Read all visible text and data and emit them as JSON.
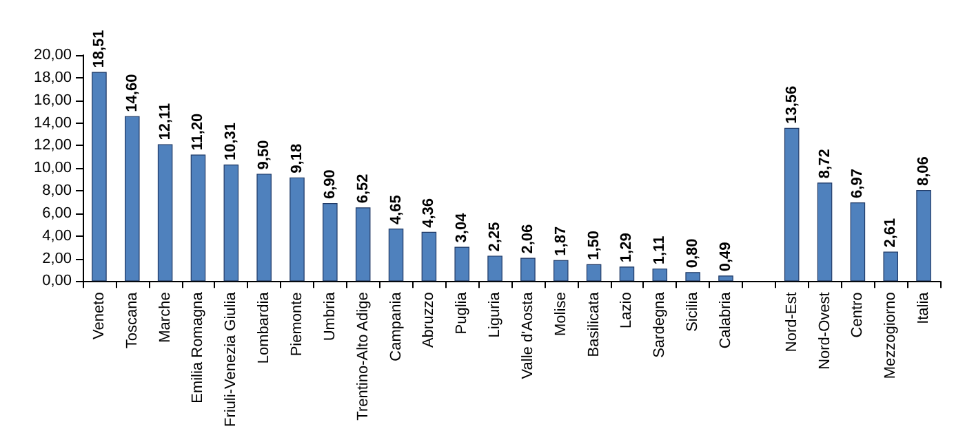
{
  "chart_data": {
    "type": "bar",
    "categories": [
      "Veneto",
      "Toscana",
      "Marche",
      "Emilia Romagna",
      "Friuli-Venezia Giulia",
      "Lombardia",
      "Piemonte",
      "Umbria",
      "Trentino-Alto Adige",
      "Campania",
      "Abruzzo",
      "Puglia",
      "Liguria",
      "Valle d'Aosta",
      "Molise",
      "Basilicata",
      "Lazio",
      "Sardegna",
      "Sicilia",
      "Calabria",
      null,
      "Nord-Est",
      "Nord-Ovest",
      "Centro",
      "Mezzogiorno",
      "Italia"
    ],
    "values": [
      18.51,
      14.6,
      12.11,
      11.2,
      10.31,
      9.5,
      9.18,
      6.9,
      6.52,
      4.65,
      4.36,
      3.04,
      2.25,
      2.06,
      1.87,
      1.5,
      1.29,
      1.11,
      0.8,
      0.49,
      null,
      13.56,
      8.72,
      6.97,
      2.61,
      8.06
    ],
    "value_labels": [
      "18,51",
      "14,60",
      "12,11",
      "11,20",
      "10,31",
      "9,50",
      "9,18",
      "6,90",
      "6,52",
      "4,65",
      "4,36",
      "3,04",
      "2,25",
      "2,06",
      "1,87",
      "1,50",
      "1,29",
      "1,11",
      "0,80",
      "0,49",
      null,
      "13,56",
      "8,72",
      "6,97",
      "2,61",
      "8,06"
    ],
    "color": "#4f81bd",
    "ylim": [
      0,
      20
    ],
    "yticks": [
      {
        "value": 0,
        "label": "0,00"
      },
      {
        "value": 2,
        "label": "2,00"
      },
      {
        "value": 4,
        "label": "4,00"
      },
      {
        "value": 6,
        "label": "6,00"
      },
      {
        "value": 8,
        "label": "8,00"
      },
      {
        "value": 10,
        "label": "10,00"
      },
      {
        "value": 12,
        "label": "12,00"
      },
      {
        "value": 14,
        "label": "14,00"
      },
      {
        "value": 16,
        "label": "16,00"
      },
      {
        "value": 18,
        "label": "18,00"
      },
      {
        "value": 20,
        "label": "20,00"
      }
    ],
    "grid": false
  }
}
